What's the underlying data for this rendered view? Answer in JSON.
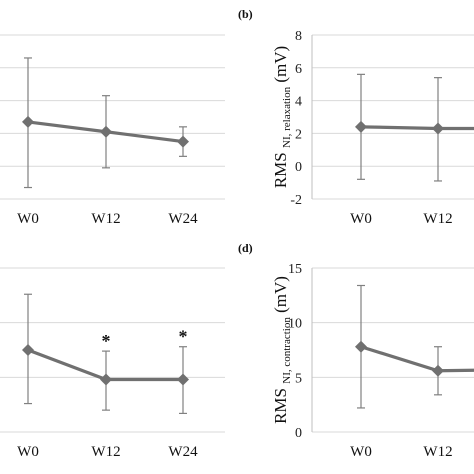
{
  "colors": {
    "series": "#707070",
    "grid": "#d9d9d9",
    "axis": "#bfbfbf",
    "error": "#808080"
  },
  "chart_data": [
    {
      "panel": "",
      "type": "line",
      "categories": [
        "W0",
        "W12",
        "W24"
      ],
      "values": [
        2.7,
        2.1,
        1.5
      ],
      "error_high": [
        6.6,
        4.3,
        2.4
      ],
      "error_low": [
        -1.3,
        -0.1,
        0.6
      ],
      "ylim": [
        -2,
        8
      ],
      "yticks": [],
      "ylabel_main": "",
      "ylabel_sub": "",
      "ylabel_unit": "",
      "annotations": [
        "",
        "",
        ""
      ],
      "grid": true
    },
    {
      "panel": "(b)",
      "type": "line",
      "categories": [
        "W0",
        "W12",
        "W24"
      ],
      "values": [
        2.4,
        2.3,
        2.3
      ],
      "error_high": [
        5.6,
        5.4,
        5.4
      ],
      "error_low": [
        -0.8,
        -0.9,
        -0.9
      ],
      "ylim": [
        -2,
        8
      ],
      "yticks": [
        "-2",
        "0",
        "2",
        "4",
        "6",
        "8"
      ],
      "ylabel_main": "RMS",
      "ylabel_sub": "NI, relaxation",
      "ylabel_unit": "(mV)",
      "annotations": [
        "",
        "",
        ""
      ],
      "grid": true
    },
    {
      "panel": "",
      "type": "line",
      "categories": [
        "W0",
        "W12",
        "W24"
      ],
      "values": [
        7.5,
        4.8,
        4.8
      ],
      "error_high": [
        12.6,
        7.4,
        7.8
      ],
      "error_low": [
        2.6,
        2.0,
        1.7
      ],
      "ylim": [
        0,
        15
      ],
      "yticks": [],
      "ylabel_main": "",
      "ylabel_sub": "",
      "ylabel_unit": "",
      "annotations": [
        "",
        "*",
        "*"
      ],
      "grid": true
    },
    {
      "panel": "(d)",
      "type": "line",
      "categories": [
        "W0",
        "W12",
        "W24"
      ],
      "values": [
        7.8,
        5.6,
        5.7
      ],
      "error_high": [
        13.4,
        7.8,
        7.8
      ],
      "error_low": [
        2.2,
        3.4,
        3.6
      ],
      "ylim": [
        0,
        15
      ],
      "yticks": [
        "0",
        "5",
        "10",
        "15"
      ],
      "ylabel_main": "RMS",
      "ylabel_sub": "NI, contraction",
      "ylabel_unit": "(mV)",
      "annotations": [
        "",
        "",
        ""
      ],
      "grid": true
    }
  ]
}
